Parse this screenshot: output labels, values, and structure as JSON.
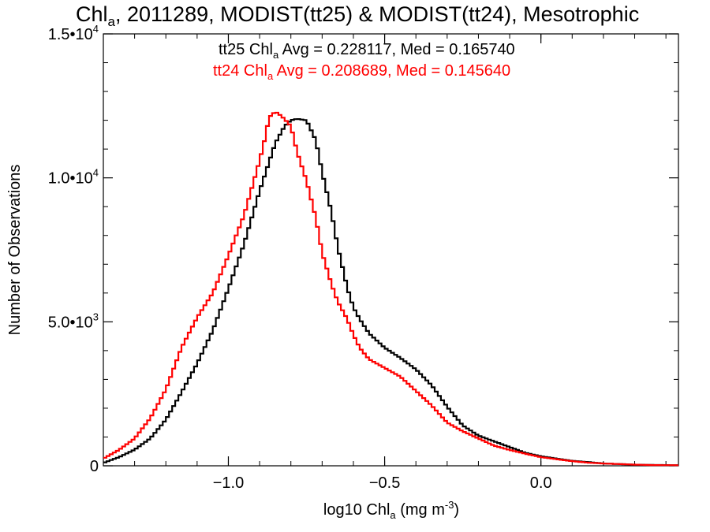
{
  "chart_data": {
    "type": "line",
    "step": true,
    "title": {
      "part1": "Chl",
      "part1_sub": "a",
      "part2": ", 2011289, MODIST(tt25) & MODIST(tt24), Mesotrophic"
    },
    "xlabel": {
      "part1": "log10 Chl",
      "part1_sub": "a",
      "part2": " (mg m",
      "part2_sup": "-3",
      "part3": ")"
    },
    "ylabel": "Number of Observations",
    "xlim": [
      -1.4,
      0.44
    ],
    "ylim": [
      0,
      15000
    ],
    "xticks": [
      {
        "value": -1.0,
        "label": "−1.0"
      },
      {
        "value": -0.5,
        "label": "−0.5"
      },
      {
        "value": 0.0,
        "label": "0.0"
      }
    ],
    "yticks": [
      {
        "value": 0,
        "label": "0",
        "sup": ""
      },
      {
        "value": 5000,
        "label": "5.0•10",
        "sup": "3"
      },
      {
        "value": 10000,
        "label": "1.0•10",
        "sup": "4"
      },
      {
        "value": 15000,
        "label": "1.5•10",
        "sup": "4"
      }
    ],
    "legend": [
      {
        "text1": "tt25 Chl",
        "sub": "a",
        "text2": " Avg = 0.228117, Med = 0.165740"
      },
      {
        "text1": "tt24 Chl",
        "sub": "a",
        "text2": " Avg = 0.208689, Med = 0.145640"
      }
    ],
    "legend_placement": "top-center",
    "series": [
      {
        "name": "tt25",
        "color": "#000000",
        "points": [
          [
            -1.4,
            100
          ],
          [
            -1.35,
            300
          ],
          [
            -1.3,
            560
          ],
          [
            -1.25,
            950
          ],
          [
            -1.2,
            1600
          ],
          [
            -1.15,
            2550
          ],
          [
            -1.1,
            3550
          ],
          [
            -1.05,
            4700
          ],
          [
            -1.0,
            6150
          ],
          [
            -0.95,
            7700
          ],
          [
            -0.9,
            9550
          ],
          [
            -0.85,
            11200
          ],
          [
            -0.82,
            11800
          ],
          [
            -0.8,
            12000
          ],
          [
            -0.78,
            12050
          ],
          [
            -0.75,
            12000
          ],
          [
            -0.72,
            11300
          ],
          [
            -0.7,
            10200
          ],
          [
            -0.67,
            8800
          ],
          [
            -0.65,
            7600
          ],
          [
            -0.62,
            6200
          ],
          [
            -0.6,
            5500
          ],
          [
            -0.58,
            5100
          ],
          [
            -0.55,
            4600
          ],
          [
            -0.5,
            4100
          ],
          [
            -0.45,
            3750
          ],
          [
            -0.4,
            3350
          ],
          [
            -0.35,
            2800
          ],
          [
            -0.3,
            2050
          ],
          [
            -0.25,
            1400
          ],
          [
            -0.2,
            1050
          ],
          [
            -0.15,
            850
          ],
          [
            -0.1,
            650
          ],
          [
            -0.05,
            450
          ],
          [
            0.0,
            330
          ],
          [
            0.05,
            250
          ],
          [
            0.1,
            170
          ],
          [
            0.15,
            130
          ],
          [
            0.2,
            80
          ],
          [
            0.25,
            60
          ],
          [
            0.3,
            40
          ],
          [
            0.35,
            30
          ],
          [
            0.44,
            20
          ]
        ]
      },
      {
        "name": "tt24",
        "color": "#ff0000",
        "points": [
          [
            -1.4,
            250
          ],
          [
            -1.35,
            550
          ],
          [
            -1.3,
            950
          ],
          [
            -1.25,
            1650
          ],
          [
            -1.2,
            2650
          ],
          [
            -1.15,
            4100
          ],
          [
            -1.1,
            5150
          ],
          [
            -1.05,
            6000
          ],
          [
            -1.0,
            7300
          ],
          [
            -0.95,
            8700
          ],
          [
            -0.9,
            10600
          ],
          [
            -0.88,
            11500
          ],
          [
            -0.87,
            12100
          ],
          [
            -0.85,
            12300
          ],
          [
            -0.83,
            12150
          ],
          [
            -0.8,
            11800
          ],
          [
            -0.78,
            10900
          ],
          [
            -0.75,
            9900
          ],
          [
            -0.72,
            8600
          ],
          [
            -0.7,
            7400
          ],
          [
            -0.67,
            6300
          ],
          [
            -0.65,
            5700
          ],
          [
            -0.62,
            5100
          ],
          [
            -0.6,
            4550
          ],
          [
            -0.58,
            4100
          ],
          [
            -0.55,
            3700
          ],
          [
            -0.5,
            3400
          ],
          [
            -0.45,
            3100
          ],
          [
            -0.4,
            2600
          ],
          [
            -0.35,
            2100
          ],
          [
            -0.3,
            1500
          ],
          [
            -0.25,
            1200
          ],
          [
            -0.2,
            950
          ],
          [
            -0.15,
            700
          ],
          [
            -0.1,
            550
          ],
          [
            -0.05,
            420
          ],
          [
            0.0,
            300
          ],
          [
            0.05,
            230
          ],
          [
            0.1,
            160
          ],
          [
            0.15,
            110
          ],
          [
            0.2,
            80
          ],
          [
            0.25,
            60
          ],
          [
            0.3,
            40
          ],
          [
            0.35,
            25
          ],
          [
            0.44,
            20
          ]
        ]
      }
    ]
  }
}
